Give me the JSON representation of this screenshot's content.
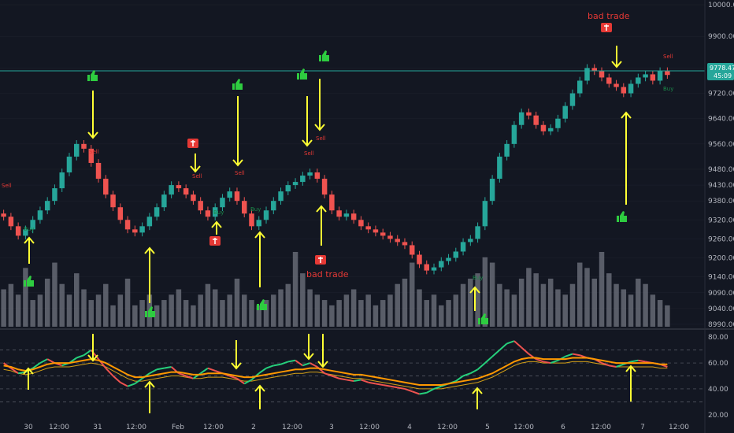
{
  "colors": {
    "background": "#131722",
    "grid": "#2a2e39",
    "up": "#26a69a",
    "down": "#ef5350",
    "volume": "#6b6f7a",
    "arrow": "#ffff33",
    "thumb": "#2ecc40",
    "bad": "#e53935",
    "rsi_green": "#26d07c",
    "rsi_red": "#ef5350",
    "rsi_orange": "#ff9800",
    "rsi_ma": "#d4a017",
    "price_tag": "#26a69a"
  },
  "chart_data": [
    {
      "type": "candlestick",
      "title": "",
      "y_ticks": [
        "10000.00",
        "9900.00",
        "9800.00",
        "9720.00",
        "9640.00",
        "9560.00",
        "9480.00",
        "9430.00",
        "9380.00",
        "9320.00",
        "9260.00",
        "9200.00",
        "9140.00",
        "9090.00",
        "9040.00",
        "8990.00"
      ],
      "ylim": [
        8960,
        10010
      ],
      "x_ticks": [
        "30",
        "12:00",
        "31",
        "12:00",
        "Feb",
        "12:00",
        "2",
        "12:00",
        "3",
        "12:00",
        "4",
        "12:00",
        "5",
        "12:00",
        "6",
        "12:00",
        "7",
        "12:00"
      ],
      "price_labels": {
        "current": "9778.47",
        "countdown": "45:09"
      },
      "close_series": [
        9330,
        9300,
        9270,
        9290,
        9320,
        9350,
        9380,
        9420,
        9470,
        9520,
        9560,
        9545,
        9500,
        9450,
        9400,
        9360,
        9320,
        9290,
        9280,
        9300,
        9330,
        9360,
        9400,
        9430,
        9420,
        9400,
        9380,
        9350,
        9330,
        9360,
        9390,
        9410,
        9380,
        9340,
        9300,
        9320,
        9350,
        9380,
        9410,
        9430,
        9440,
        9460,
        9470,
        9450,
        9400,
        9350,
        9330,
        9340,
        9320,
        9300,
        9290,
        9280,
        9270,
        9260,
        9250,
        9240,
        9210,
        9180,
        9160,
        9170,
        9190,
        9200,
        9220,
        9250,
        9260,
        9300,
        9380,
        9450,
        9520,
        9560,
        9620,
        9660,
        9650,
        9620,
        9600,
        9610,
        9640,
        9680,
        9720,
        9760,
        9800,
        9790,
        9770,
        9750,
        9740,
        9720,
        9750,
        9770,
        9780,
        9760,
        9790,
        9778
      ],
      "volume_series": [
        35,
        40,
        30,
        55,
        25,
        30,
        45,
        60,
        40,
        30,
        50,
        35,
        25,
        30,
        40,
        20,
        30,
        45,
        20,
        25,
        30,
        20,
        25,
        30,
        35,
        25,
        20,
        30,
        40,
        35,
        25,
        30,
        45,
        30,
        25,
        20,
        25,
        30,
        35,
        40,
        70,
        50,
        35,
        30,
        25,
        20,
        25,
        30,
        35,
        25,
        30,
        20,
        25,
        30,
        40,
        45,
        60,
        35,
        25,
        30,
        20,
        25,
        30,
        40,
        45,
        50,
        65,
        60,
        40,
        35,
        30,
        45,
        55,
        50,
        40,
        45,
        35,
        30,
        40,
        60,
        55,
        45,
        70,
        50,
        40,
        35,
        30,
        45,
        40,
        30,
        25,
        20
      ],
      "annotations": {
        "bad_trade_1": "bad trade",
        "bad_trade_2": "bad trade"
      },
      "signal_labels": {
        "sell": "Sell",
        "buy": "Buy"
      }
    },
    {
      "type": "line",
      "title": "",
      "y_ticks": [
        "80.00",
        "60.00",
        "40.00",
        "20.00"
      ],
      "ylim": [
        15,
        85
      ],
      "series": [
        {
          "values": [
            60,
            56,
            52,
            53,
            56,
            60,
            63,
            60,
            58,
            60,
            64,
            66,
            70,
            63,
            56,
            50,
            45,
            42,
            44,
            48,
            52,
            55,
            56,
            57,
            52,
            50,
            48,
            52,
            56,
            54,
            52,
            50,
            48,
            44,
            47,
            52,
            56,
            58,
            59,
            61,
            62,
            58,
            60,
            57,
            52,
            50,
            48,
            47,
            46,
            47,
            45,
            44,
            43,
            42,
            41,
            40,
            38,
            36,
            37,
            40,
            42,
            44,
            46,
            50,
            52,
            55,
            60,
            65,
            70,
            75,
            77,
            72,
            67,
            63,
            61,
            60,
            62,
            65,
            67,
            66,
            64,
            63,
            60,
            58,
            57,
            59,
            61,
            62,
            61,
            60,
            59,
            57
          ]
        },
        {
          "values": [
            58,
            57,
            55,
            54,
            55,
            57,
            59,
            60,
            60,
            60,
            61,
            62,
            63,
            62,
            60,
            57,
            54,
            51,
            49,
            49,
            50,
            51,
            52,
            53,
            53,
            52,
            51,
            51,
            52,
            52,
            52,
            51,
            50,
            49,
            49,
            50,
            51,
            52,
            53,
            54,
            55,
            55,
            56,
            56,
            55,
            54,
            53,
            52,
            51,
            51,
            50,
            49,
            48,
            47,
            46,
            45,
            44,
            43,
            43,
            43,
            43,
            44,
            45,
            46,
            47,
            48,
            50,
            52,
            55,
            58,
            61,
            63,
            64,
            64,
            63,
            63,
            63,
            63,
            64,
            64,
            64,
            63,
            62,
            61,
            60,
            60,
            60,
            60,
            60,
            60,
            59,
            59
          ]
        }
      ]
    }
  ]
}
